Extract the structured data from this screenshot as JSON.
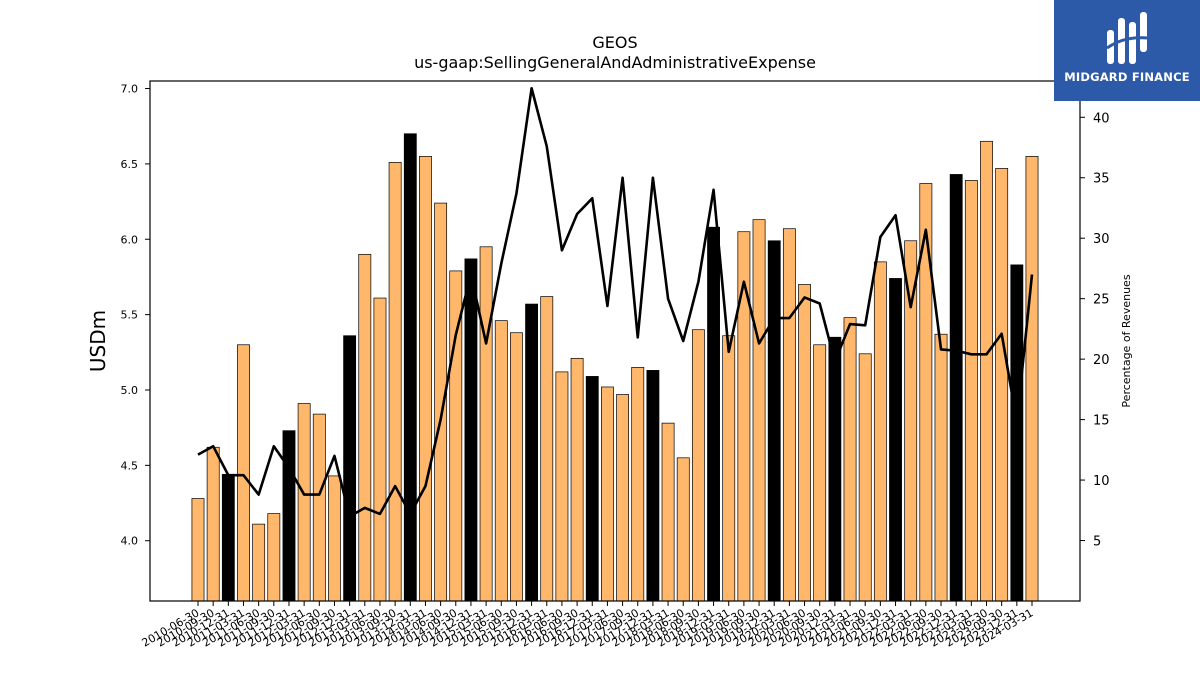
{
  "chart_data": {
    "type": "bar",
    "title": "GEOS",
    "subtitle": "us-gaap:SellingGeneralAndAdministrativeExpense",
    "ylabel": "USDm",
    "y2label": "Percentage of Revenues",
    "ylim": [
      3.6,
      7.05
    ],
    "y2lim": [
      0,
      43
    ],
    "yticks": [
      "4.0",
      "4.5",
      "5.0",
      "5.5",
      "6.0",
      "6.5",
      "7.0"
    ],
    "y2ticks": [
      "5",
      "10",
      "15",
      "20",
      "25",
      "30",
      "35",
      "40"
    ],
    "grid": false,
    "colors": {
      "bar_quarter": "#ffb86b",
      "bar_annual": "#000000",
      "line": "#000000",
      "edge": "#000000"
    },
    "categories": [
      "2010-06-30",
      "2010-09-30",
      "2010-12-31",
      "2011-03-31",
      "2011-06-30",
      "2011-09-30",
      "2011-12-31",
      "2012-03-31",
      "2012-06-30",
      "2012-09-30",
      "2012-12-31",
      "2013-03-31",
      "2013-06-30",
      "2013-09-30",
      "2013-12-31",
      "2014-03-31",
      "2014-06-30",
      "2014-09-30",
      "2014-12-31",
      "2015-03-31",
      "2015-06-30",
      "2015-09-30",
      "2015-12-31",
      "2016-03-31",
      "2016-06-30",
      "2016-09-30",
      "2016-12-31",
      "2017-03-31",
      "2017-06-30",
      "2017-09-30",
      "2017-12-31",
      "2018-03-31",
      "2018-06-30",
      "2018-09-30",
      "2018-12-31",
      "2019-03-31",
      "2019-06-30",
      "2019-09-30",
      "2019-12-31",
      "2020-03-31",
      "2020-06-30",
      "2020-09-30",
      "2020-12-31",
      "2021-03-31",
      "2021-06-30",
      "2021-09-30",
      "2021-12-31",
      "2022-03-31",
      "2022-06-30",
      "2022-09-30",
      "2022-12-31",
      "2023-03-31",
      "2023-06-30",
      "2023-09-30",
      "2023-12-31",
      "2024-03-31"
    ],
    "tick_labels": [
      "2010-06-30",
      "2010-09-30",
      "2010-12-31",
      "2011-03-31",
      "2011-06-30",
      "2011-09-30",
      "2011-12-31",
      "2012-03-31",
      "2012-06-30",
      "2012-09-30",
      "2012-12-31",
      "2013-03-31",
      "2013-06-30",
      "2013-09-30",
      "2013-12-31",
      "2014-03-31",
      "2014-06-30",
      "2014-09-30",
      "2014-12-31",
      "2015-03-31",
      "2015-06-30",
      "2015-09-30",
      "2015-12-31",
      "2016-03-31",
      "2016-06-30",
      "2016-09-30",
      "2016-12-31",
      "2017-03-31",
      "2017-06-30",
      "2017-09-30",
      "2017-12-31",
      "2018-03-31",
      "2018-06-30",
      "2018-09-30",
      "2018-12-31",
      "2019-03-31",
      "2019-06-30",
      "2019-09-30",
      "2019-12-31",
      "2020-03-31",
      "2020-06-30",
      "2020-09-30",
      "2020-12-31",
      "2021-03-31",
      "2021-06-30",
      "2021-09-30",
      "2021-12-31",
      "2022-03-31",
      "2022-06-30",
      "2022-09-30",
      "2022-12-31",
      "2023-03-31",
      "2023-06-30",
      "2023-09-30",
      "2023-12-31",
      "2024-03-31"
    ],
    "series": [
      {
        "type": "bar",
        "axis": "left",
        "values": [
          4.28,
          4.62,
          4.44,
          5.3,
          4.11,
          4.18,
          4.73,
          4.91,
          4.84,
          4.43,
          5.36,
          5.9,
          5.61,
          6.51,
          6.7,
          6.55,
          6.24,
          5.79,
          5.87,
          5.95,
          5.46,
          5.38,
          5.57,
          5.62,
          5.12,
          5.21,
          5.09,
          5.02,
          4.97,
          5.15,
          5.13,
          4.78,
          4.55,
          5.4,
          6.08,
          5.36,
          6.05,
          6.13,
          5.99,
          6.07,
          5.7,
          5.3,
          5.35,
          5.48,
          5.24,
          5.85,
          5.74,
          5.99,
          6.37,
          5.37,
          6.43,
          6.39,
          6.65,
          6.47,
          5.83,
          6.55
        ],
        "annual": [
          false,
          false,
          true,
          false,
          false,
          false,
          true,
          false,
          false,
          false,
          true,
          false,
          false,
          false,
          true,
          false,
          false,
          false,
          true,
          false,
          false,
          false,
          true,
          false,
          false,
          false,
          true,
          false,
          false,
          false,
          true,
          false,
          false,
          false,
          true,
          false,
          false,
          false,
          true,
          false,
          false,
          false,
          true,
          false,
          false,
          false,
          true,
          false,
          false,
          false,
          true,
          false,
          false,
          false,
          true,
          false
        ]
      },
      {
        "type": "line",
        "axis": "right",
        "values": [
          12.1,
          12.8,
          10.4,
          10.4,
          8.8,
          12.8,
          11.0,
          8.8,
          8.8,
          12.0,
          7.0,
          7.7,
          7.2,
          9.5,
          7.2,
          9.5,
          15.0,
          22.0,
          27.0,
          21.3,
          27.9,
          33.7,
          42.4,
          37.6,
          29.0,
          32.0,
          33.3,
          24.4,
          35.0,
          21.8,
          35.0,
          25.0,
          21.5,
          26.4,
          34.0,
          20.6,
          26.4,
          21.3,
          23.4,
          23.4,
          25.1,
          24.6,
          19.8,
          22.9,
          22.8,
          30.1,
          31.9,
          24.3,
          30.7,
          20.8,
          20.7,
          20.4,
          20.4,
          22.1,
          14.8,
          27.0
        ]
      }
    ]
  },
  "branding": {
    "name": "MIDGARD FINANCE"
  }
}
